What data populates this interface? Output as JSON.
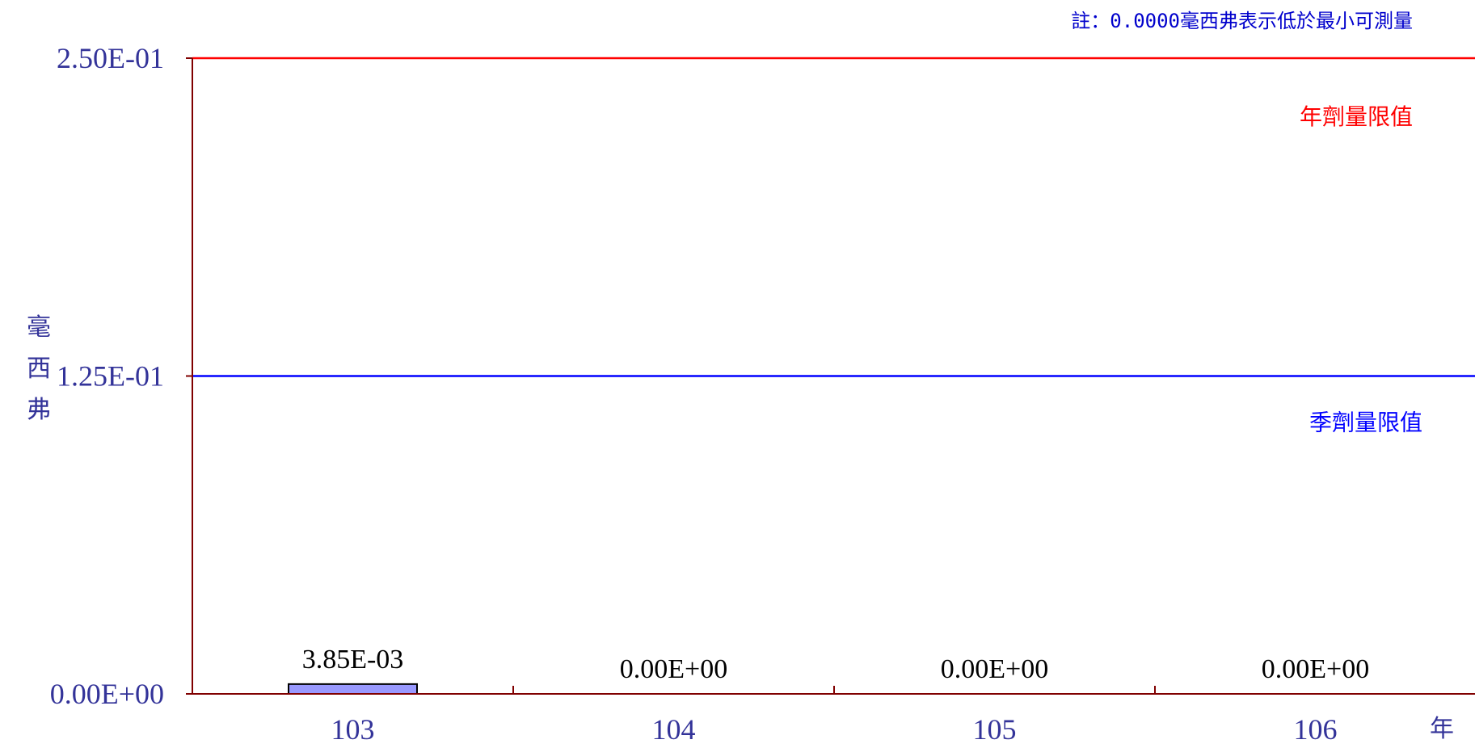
{
  "chart_data": {
    "type": "bar",
    "note": "註：0.0000毫西弗表示低於最小可測量",
    "ylabel": "毫西弗",
    "xlabel": "年",
    "ylim": [
      0,
      0.25
    ],
    "yticks": [
      "0.00E+00",
      "1.25E-01",
      "2.50E-01"
    ],
    "categories": [
      "103",
      "104",
      "105",
      "106"
    ],
    "values": [
      0.00385,
      0,
      0,
      0
    ],
    "data_labels": [
      "3.85E-03",
      "0.00E+00",
      "0.00E+00",
      "0.00E+00"
    ],
    "bar_color": "#9999ff",
    "reference_lines": [
      {
        "label": "年劑量限值",
        "value": 0.25,
        "color": "#ff0000"
      },
      {
        "label": "季劑量限值",
        "value": 0.125,
        "color": "#0000ff"
      }
    ],
    "axis_color": "#800000",
    "tick_label_color": "#333399"
  }
}
